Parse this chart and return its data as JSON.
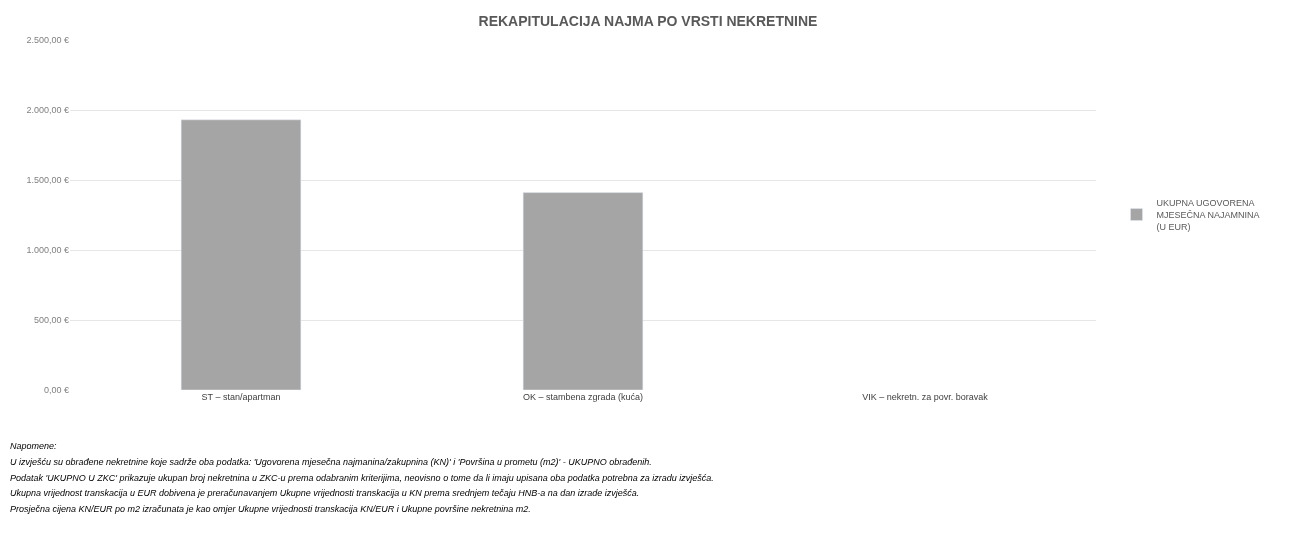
{
  "chart_data": {
    "type": "bar",
    "title": "REKAPITULACIJA NAJMA PO VRSTI NEKRETNINE",
    "categories": [
      "ST – stan/apartman",
      "OK – stambena zgrada (kuća)",
      "VIK – nekretn. za povr. boravak"
    ],
    "series": [
      {
        "name": "UKUPNA UGOVORENA MJESEČNA NAJAMNINA (U EUR)",
        "color": "#a5a5a5",
        "values": [
          1930,
          1410,
          null
        ]
      }
    ],
    "ylim": [
      0,
      2500
    ],
    "yticks": [
      {
        "value": 0,
        "label": "0,00 €"
      },
      {
        "value": 500,
        "label": "500,00 €"
      },
      {
        "value": 1000,
        "label": "1.000,00 €"
      },
      {
        "value": 1500,
        "label": "1.500,00 €"
      },
      {
        "value": 2000,
        "label": "2.000,00 €"
      },
      {
        "value": 2500,
        "label": "2.500,00 €"
      }
    ],
    "grid": "y",
    "legend": "right",
    "annotations": [
      "Napomene:",
      "U izvješću su obrađene nekretnine koje sadrže oba podatka: 'Ugovorena mjesečna najmanina/zakupnina (KN)' i 'Površina u prometu (m2)' - UKUPNO obrađenih.",
      "Podatak 'UKUPNO U ZKC' prikazuje ukupan broj nekretnina u ZKC-u prema odabranim kriterijima, neovisno o tome da li imaju upisana oba podatka potrebna za izradu izvješća.",
      "Ukupna vrijednost transkacija u EUR dobivena je preračunavanjem Ukupne vrijednosti transkacija u KN prema srednjem tečaju HNB-a na dan izrade izvješća.",
      "Prosječna cijena KN/EUR po m2 izračunata je kao omjer Ukupne vrijednosti transkacija KN/EUR i Ukupne površine nekretnina m2."
    ]
  }
}
